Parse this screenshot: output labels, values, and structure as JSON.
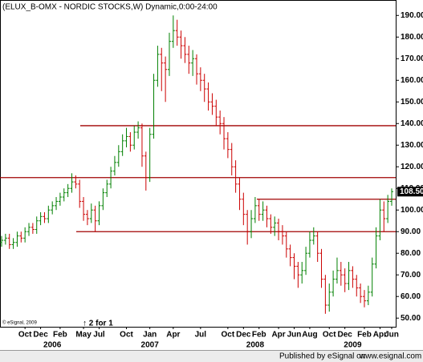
{
  "chart_data": {
    "type": "ohlc",
    "title": "(ELUX_B-OMX - NORDIC STOCKS,W) Dynamic,0:00-24:00",
    "copyright": "© eSignal, 2009",
    "annotation": "↑ 2 for 1",
    "footer": "Published by eSignal on",
    "footer_url": "www.esignal.com",
    "up_color": "#008000",
    "down_color": "#cc0000",
    "line_color": "#a00000",
    "categories": [
      null,
      null,
      null,
      null,
      null,
      null,
      "Oct",
      null,
      null,
      null,
      "Dec",
      null,
      null,
      null,
      null,
      "Feb",
      null,
      null,
      null,
      null,
      null,
      "May",
      null,
      null,
      null,
      "Jul",
      null,
      null,
      null,
      null,
      null,
      null,
      "Oct",
      null,
      null,
      null,
      null,
      null,
      "Jan",
      null,
      null,
      null,
      null,
      null,
      "Apr",
      null,
      null,
      null,
      null,
      null,
      null,
      "Jul",
      null,
      null,
      null,
      null,
      null,
      null,
      "Oct",
      null,
      null,
      null,
      "Dec",
      null,
      null,
      null,
      "Feb",
      null,
      null,
      null,
      null,
      "Apr",
      null,
      null,
      null,
      "Jun",
      null,
      null,
      null,
      "Aug",
      null,
      null,
      null,
      null,
      "Oct",
      null,
      null,
      null,
      "Dec",
      null,
      null,
      null,
      null,
      "Feb",
      null,
      null,
      null,
      "Apr",
      null,
      null,
      "Jun"
    ],
    "year_labels": [
      null,
      null,
      null,
      null,
      null,
      null,
      null,
      null,
      null,
      null,
      null,
      null,
      null,
      "2006",
      null,
      null,
      null,
      null,
      null,
      null,
      null,
      null,
      null,
      null,
      null,
      null,
      null,
      null,
      null,
      null,
      null,
      null,
      null,
      null,
      null,
      null,
      null,
      null,
      "2007",
      null,
      null,
      null,
      null,
      null,
      null,
      null,
      null,
      null,
      null,
      null,
      null,
      null,
      null,
      null,
      null,
      null,
      null,
      null,
      null,
      null,
      null,
      null,
      null,
      null,
      null,
      "2008",
      null,
      null,
      null,
      null,
      null,
      null,
      null,
      null,
      null,
      null,
      null,
      null,
      null,
      null,
      null,
      null,
      null,
      null,
      null,
      null,
      null,
      null,
      null,
      null,
      "2009",
      null,
      null,
      null,
      null,
      null,
      null,
      null,
      null,
      null,
      null
    ],
    "open": [
      85,
      86,
      87,
      84,
      85,
      88,
      87,
      90,
      92,
      91,
      95,
      97,
      96,
      100,
      102,
      104,
      106,
      108,
      110,
      113,
      112,
      104,
      98,
      96,
      100,
      95,
      102,
      108,
      112,
      118,
      122,
      127,
      132,
      134,
      130,
      136,
      138,
      125,
      115,
      135,
      160,
      172,
      168,
      165,
      178,
      183,
      180,
      176,
      172,
      168,
      170,
      163,
      160,
      156,
      150,
      148,
      143,
      140,
      133,
      128,
      120,
      112,
      105,
      98,
      90,
      96,
      102,
      98,
      100,
      96,
      92,
      94,
      90,
      88,
      82,
      78,
      74,
      70,
      72,
      80,
      86,
      88,
      80,
      68,
      56,
      62,
      68,
      72,
      70,
      66,
      72,
      68,
      64,
      60,
      58,
      62,
      75,
      88,
      100,
      96,
      104
    ],
    "high": [
      88,
      89,
      89,
      87,
      90,
      90,
      92,
      94,
      94,
      97,
      99,
      99,
      102,
      104,
      106,
      108,
      110,
      112,
      117,
      116,
      114,
      106,
      100,
      103,
      102,
      104,
      110,
      114,
      120,
      125,
      130,
      135,
      138,
      136,
      139,
      141,
      140,
      127,
      138,
      163,
      176,
      175,
      171,
      182,
      190,
      188,
      183,
      180,
      176,
      174,
      172,
      166,
      163,
      159,
      154,
      151,
      146,
      143,
      136,
      131,
      123,
      115,
      108,
      100,
      100,
      106,
      105,
      104,
      102,
      98,
      97,
      96,
      93,
      90,
      84,
      80,
      76,
      76,
      83,
      90,
      92,
      90,
      82,
      70,
      66,
      72,
      78,
      76,
      73,
      76,
      74,
      70,
      66,
      63,
      65,
      78,
      92,
      105,
      104,
      107,
      110
    ],
    "low": [
      83,
      84,
      82,
      82,
      83,
      85,
      85,
      88,
      89,
      89,
      93,
      94,
      94,
      98,
      100,
      102,
      104,
      106,
      108,
      110,
      101,
      95,
      93,
      94,
      90,
      93,
      100,
      106,
      110,
      116,
      120,
      125,
      129,
      127,
      128,
      133,
      120,
      109,
      113,
      133,
      157,
      155,
      150,
      162,
      175,
      176,
      170,
      168,
      163,
      162,
      158,
      155,
      150,
      146,
      144,
      139,
      135,
      128,
      124,
      116,
      108,
      100,
      93,
      84,
      87,
      94,
      95,
      95,
      92,
      89,
      88,
      86,
      84,
      78,
      74,
      68,
      64,
      66,
      70,
      78,
      84,
      76,
      64,
      52,
      53,
      60,
      66,
      65,
      62,
      63,
      64,
      60,
      57,
      55,
      56,
      60,
      73,
      86,
      90,
      94,
      102
    ],
    "close": [
      86,
      87,
      84,
      85,
      88,
      87,
      90,
      92,
      91,
      95,
      97,
      96,
      100,
      102,
      104,
      106,
      108,
      110,
      113,
      112,
      104,
      98,
      96,
      100,
      95,
      102,
      108,
      112,
      118,
      122,
      127,
      132,
      134,
      130,
      136,
      138,
      125,
      115,
      135,
      160,
      172,
      168,
      165,
      178,
      183,
      180,
      176,
      172,
      168,
      170,
      163,
      160,
      156,
      150,
      148,
      143,
      140,
      133,
      128,
      120,
      112,
      105,
      98,
      90,
      96,
      102,
      98,
      100,
      96,
      92,
      94,
      90,
      88,
      82,
      78,
      74,
      70,
      72,
      80,
      86,
      88,
      80,
      68,
      56,
      62,
      68,
      72,
      70,
      66,
      72,
      68,
      64,
      60,
      58,
      62,
      75,
      88,
      100,
      96,
      104,
      108.5
    ],
    "close_labels": {
      "100": "108.50"
    },
    "hlines": [
      139,
      115,
      105,
      90
    ],
    "ylim": [
      46,
      196.4
    ],
    "yticks": [
      {
        "value": 50,
        "label": "50.00"
      },
      {
        "value": 60,
        "label": "60.00"
      },
      {
        "value": 70,
        "label": "70.00"
      },
      {
        "value": 80,
        "label": "80.00"
      },
      {
        "value": 90,
        "label": "90.00"
      },
      {
        "value": 100,
        "label": "100.00"
      },
      {
        "value": 110,
        "label": "110.00"
      },
      {
        "value": 120,
        "label": "120.00"
      },
      {
        "value": 130,
        "label": "130.00"
      },
      {
        "value": 140,
        "label": "140.00"
      },
      {
        "value": 150,
        "label": "150.00"
      },
      {
        "value": 160,
        "label": "160.00"
      },
      {
        "value": 170,
        "label": "170.00"
      },
      {
        "value": 180,
        "label": "180.00"
      },
      {
        "value": 190,
        "label": "190.00"
      }
    ]
  }
}
